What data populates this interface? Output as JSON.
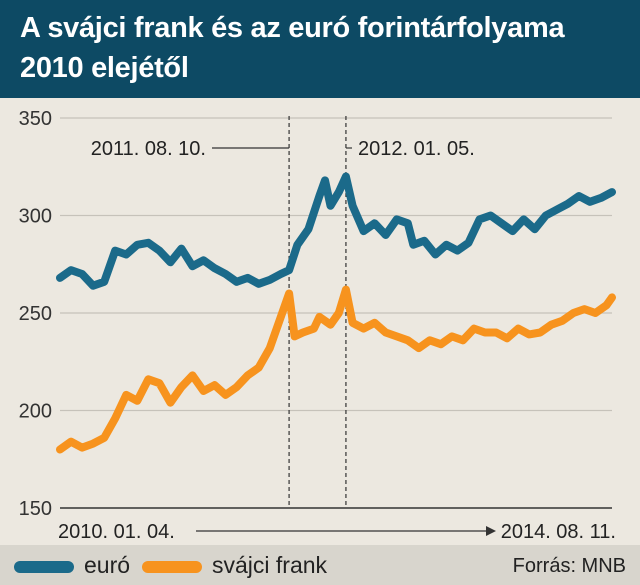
{
  "title": "A svájci frank és az euró forintárfolyama 2010 elejétől",
  "source": "Forrás: MNB",
  "colors": {
    "header": "#0d4a64",
    "euro": "#1b6a8a",
    "frank": "#f7931e",
    "background": "#ece8e0"
  },
  "chart_data": {
    "type": "line",
    "title": "A svájci frank és az euró forintárfolyama 2010 elejétől",
    "ylim": [
      150,
      350
    ],
    "yticks": [
      350,
      300,
      250,
      200,
      150
    ],
    "grid": "horizontal",
    "xrange_labels": {
      "start": "2010. 01. 04.",
      "end": "2014. 08. 11."
    },
    "annotations": [
      {
        "label": "2011. 08. 10.",
        "t": 0.415
      },
      {
        "label": "2012. 01. 05.",
        "t": 0.518
      }
    ],
    "legend_placement": "bottom",
    "series": [
      {
        "name": "euró",
        "color": "#1b6a8a",
        "points": [
          [
            0.0,
            268
          ],
          [
            0.02,
            272
          ],
          [
            0.04,
            270
          ],
          [
            0.06,
            264
          ],
          [
            0.08,
            266
          ],
          [
            0.1,
            282
          ],
          [
            0.12,
            280
          ],
          [
            0.14,
            285
          ],
          [
            0.16,
            286
          ],
          [
            0.18,
            282
          ],
          [
            0.2,
            276
          ],
          [
            0.22,
            283
          ],
          [
            0.24,
            274
          ],
          [
            0.26,
            277
          ],
          [
            0.28,
            273
          ],
          [
            0.3,
            270
          ],
          [
            0.32,
            266
          ],
          [
            0.34,
            268
          ],
          [
            0.36,
            265
          ],
          [
            0.38,
            267
          ],
          [
            0.4,
            270
          ],
          [
            0.415,
            272
          ],
          [
            0.43,
            285
          ],
          [
            0.45,
            293
          ],
          [
            0.47,
            310
          ],
          [
            0.48,
            318
          ],
          [
            0.49,
            305
          ],
          [
            0.505,
            312
          ],
          [
            0.518,
            320
          ],
          [
            0.53,
            305
          ],
          [
            0.55,
            292
          ],
          [
            0.57,
            296
          ],
          [
            0.59,
            290
          ],
          [
            0.61,
            298
          ],
          [
            0.63,
            296
          ],
          [
            0.64,
            285
          ],
          [
            0.66,
            287
          ],
          [
            0.68,
            280
          ],
          [
            0.7,
            285
          ],
          [
            0.72,
            282
          ],
          [
            0.74,
            286
          ],
          [
            0.76,
            298
          ],
          [
            0.78,
            300
          ],
          [
            0.8,
            296
          ],
          [
            0.82,
            292
          ],
          [
            0.84,
            298
          ],
          [
            0.86,
            293
          ],
          [
            0.88,
            300
          ],
          [
            0.9,
            303
          ],
          [
            0.92,
            306
          ],
          [
            0.94,
            310
          ],
          [
            0.96,
            307
          ],
          [
            0.98,
            309
          ],
          [
            1.0,
            312
          ]
        ]
      },
      {
        "name": "svájci frank",
        "color": "#f7931e",
        "points": [
          [
            0.0,
            180
          ],
          [
            0.02,
            184
          ],
          [
            0.04,
            181
          ],
          [
            0.06,
            183
          ],
          [
            0.08,
            186
          ],
          [
            0.1,
            196
          ],
          [
            0.12,
            208
          ],
          [
            0.14,
            205
          ],
          [
            0.16,
            216
          ],
          [
            0.18,
            214
          ],
          [
            0.2,
            204
          ],
          [
            0.22,
            212
          ],
          [
            0.24,
            218
          ],
          [
            0.26,
            210
          ],
          [
            0.28,
            213
          ],
          [
            0.3,
            208
          ],
          [
            0.32,
            212
          ],
          [
            0.34,
            218
          ],
          [
            0.36,
            222
          ],
          [
            0.38,
            232
          ],
          [
            0.4,
            248
          ],
          [
            0.415,
            260
          ],
          [
            0.425,
            238
          ],
          [
            0.44,
            240
          ],
          [
            0.46,
            242
          ],
          [
            0.47,
            248
          ],
          [
            0.49,
            244
          ],
          [
            0.505,
            250
          ],
          [
            0.518,
            262
          ],
          [
            0.53,
            245
          ],
          [
            0.55,
            242
          ],
          [
            0.57,
            245
          ],
          [
            0.59,
            240
          ],
          [
            0.61,
            238
          ],
          [
            0.63,
            236
          ],
          [
            0.65,
            232
          ],
          [
            0.67,
            236
          ],
          [
            0.69,
            234
          ],
          [
            0.71,
            238
          ],
          [
            0.73,
            236
          ],
          [
            0.75,
            242
          ],
          [
            0.77,
            240
          ],
          [
            0.79,
            240
          ],
          [
            0.81,
            237
          ],
          [
            0.83,
            242
          ],
          [
            0.85,
            239
          ],
          [
            0.87,
            240
          ],
          [
            0.89,
            244
          ],
          [
            0.91,
            246
          ],
          [
            0.93,
            250
          ],
          [
            0.95,
            252
          ],
          [
            0.97,
            250
          ],
          [
            0.99,
            254
          ],
          [
            1.0,
            258
          ]
        ]
      }
    ]
  }
}
